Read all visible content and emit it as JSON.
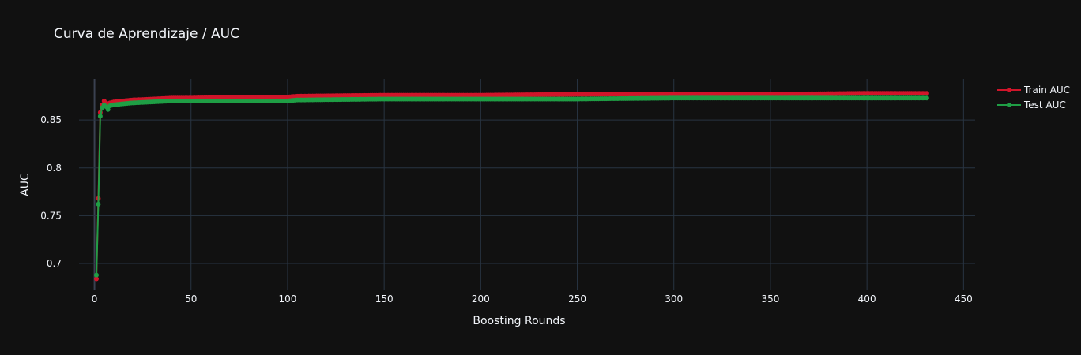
{
  "chart_data": {
    "type": "line",
    "title": "Curva de Aprendizaje / AUC",
    "xlabel": "Boosting Rounds",
    "ylabel": "AUC",
    "xlim": [
      -8,
      456
    ],
    "ylim": [
      0.672,
      0.893
    ],
    "x_ticks": [
      0,
      50,
      100,
      150,
      200,
      250,
      300,
      350,
      400,
      450
    ],
    "y_ticks": [
      0.7,
      0.75,
      0.8,
      0.85
    ],
    "y_tick_labels": [
      "0.7",
      "0.75",
      "0.8",
      "0.85"
    ],
    "grid": true,
    "legend_position": "top-right",
    "markers": true,
    "series": [
      {
        "name": "Train AUC",
        "color": "#d0152a",
        "x": [
          1,
          2,
          3,
          4,
          5,
          6,
          7,
          8,
          10,
          15,
          20,
          30,
          40,
          50,
          75,
          100,
          105,
          150,
          200,
          250,
          300,
          350,
          400,
          431
        ],
        "y": [
          0.684,
          0.768,
          0.858,
          0.866,
          0.87,
          0.868,
          0.866,
          0.868,
          0.869,
          0.87,
          0.871,
          0.872,
          0.873,
          0.873,
          0.874,
          0.874,
          0.875,
          0.876,
          0.876,
          0.877,
          0.877,
          0.877,
          0.878,
          0.878
        ]
      },
      {
        "name": "Test AUC",
        "color": "#1f9e45",
        "x": [
          1,
          2,
          3,
          4,
          5,
          6,
          7,
          8,
          10,
          15,
          20,
          30,
          40,
          50,
          75,
          100,
          105,
          150,
          200,
          250,
          300,
          350,
          400,
          431
        ],
        "y": [
          0.688,
          0.762,
          0.854,
          0.863,
          0.866,
          0.864,
          0.861,
          0.865,
          0.866,
          0.867,
          0.868,
          0.869,
          0.87,
          0.87,
          0.87,
          0.87,
          0.871,
          0.872,
          0.872,
          0.872,
          0.873,
          0.873,
          0.873,
          0.873
        ]
      }
    ]
  }
}
